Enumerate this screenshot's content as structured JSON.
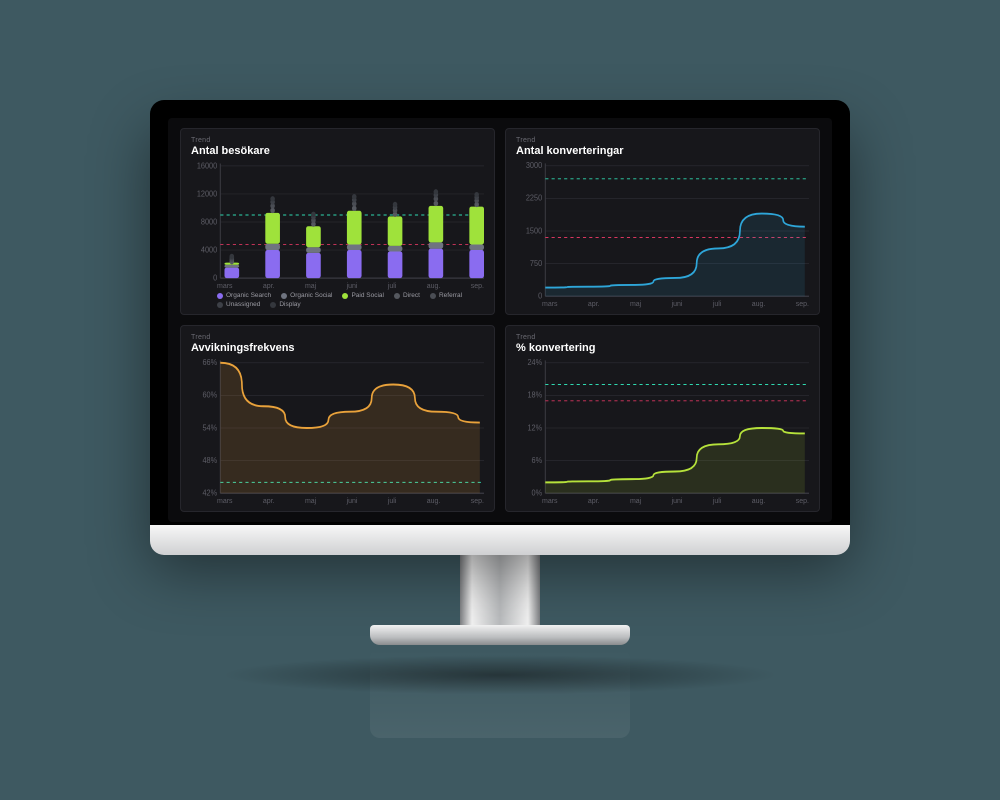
{
  "months": [
    "mars",
    "apr.",
    "maj",
    "juni",
    "juli",
    "aug.",
    "sep."
  ],
  "panels": {
    "visitors": {
      "eyebrow": "Trend",
      "title": "Antal besökare",
      "type": "bar-stacked-dot",
      "y": {
        "max": 16000,
        "ticks": [
          0,
          4000,
          8000,
          12000,
          16000
        ]
      },
      "ref_lines": [
        {
          "value": 9000,
          "color": "#2fd9b0",
          "dash": "3,3"
        },
        {
          "value": 4800,
          "color": "#d9365f",
          "dash": "3,3"
        }
      ],
      "series": [
        {
          "name": "Organic Search",
          "color": "#8a6cf0"
        },
        {
          "name": "Organic Social",
          "color": "#6f7480"
        },
        {
          "name": "Paid Social",
          "color": "#9fe23b"
        },
        {
          "name": "Direct",
          "color": "#55585f"
        },
        {
          "name": "Referral",
          "color": "#4a4d54"
        },
        {
          "name": "Unassigned",
          "color": "#3d4047"
        },
        {
          "name": "Display",
          "color": "#34373d"
        }
      ],
      "stacks": [
        [
          1500,
          400,
          300,
          300,
          300,
          200,
          200
        ],
        [
          4000,
          900,
          4400,
          700,
          600,
          500,
          400
        ],
        [
          3600,
          800,
          3000,
          600,
          500,
          400,
          400
        ],
        [
          4000,
          800,
          4800,
          700,
          600,
          500,
          400
        ],
        [
          3800,
          800,
          4200,
          600,
          500,
          400,
          400
        ],
        [
          4200,
          900,
          5200,
          700,
          600,
          500,
          400
        ],
        [
          4000,
          800,
          5400,
          600,
          500,
          400,
          400
        ]
      ]
    },
    "conversions": {
      "eyebrow": "Trend",
      "title": "Antal konverteringar",
      "type": "line",
      "y": {
        "max": 3000,
        "ticks": [
          0,
          750,
          1500,
          2250,
          3000
        ]
      },
      "ref_lines": [
        {
          "value": 2700,
          "color": "#2fd9b0",
          "dash": "3,3"
        },
        {
          "value": 1350,
          "color": "#d9365f",
          "dash": "3,3"
        }
      ],
      "line": {
        "color": "#2ea6d9",
        "width": 1.6,
        "fill": "rgba(46,166,217,0.12)"
      },
      "values": [
        200,
        220,
        260,
        420,
        1100,
        1900,
        1600
      ]
    },
    "bounce": {
      "eyebrow": "Trend",
      "title": "Avvikningsfrekvens",
      "type": "line",
      "y": {
        "min": 42,
        "max": 66,
        "ticks": [
          42,
          48,
          54,
          60,
          66
        ],
        "suffix": "%"
      },
      "ref_lines": [
        {
          "value": 44,
          "color": "#2fd9b0",
          "dash": "3,3"
        }
      ],
      "line": {
        "color": "#e9a23b",
        "width": 1.6,
        "fill": "rgba(233,162,59,0.15)"
      },
      "values": [
        66,
        58,
        54,
        57,
        62,
        57,
        55
      ]
    },
    "convRate": {
      "eyebrow": "Trend",
      "title": "% konvertering",
      "type": "line",
      "y": {
        "min": 0,
        "max": 24,
        "ticks": [
          0,
          6,
          12,
          18,
          24
        ],
        "suffix": "%"
      },
      "ref_lines": [
        {
          "value": 20,
          "color": "#2fd9b0",
          "dash": "3,3"
        },
        {
          "value": 17,
          "color": "#d9365f",
          "dash": "3,3"
        }
      ],
      "line": {
        "color": "#b6e23b",
        "width": 1.6,
        "fill": "rgba(182,226,59,0.12)"
      },
      "values": [
        2,
        2.2,
        2.6,
        4,
        9,
        12,
        11
      ]
    }
  }
}
